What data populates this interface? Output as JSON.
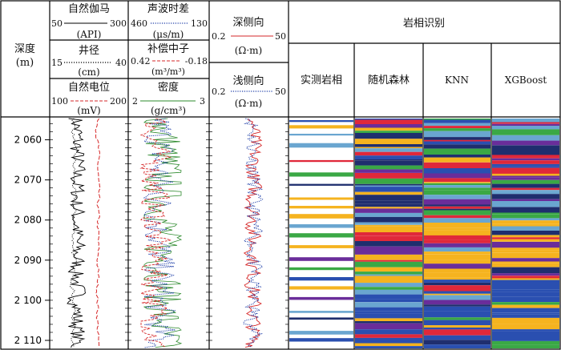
{
  "header": {
    "depth_title": "深度",
    "depth_unit": "(m)",
    "track1": [
      {
        "name": "自然伽马",
        "left": "50",
        "right": "300",
        "unit": "(API)",
        "color": "#000000",
        "style": "solid"
      },
      {
        "name": "井径",
        "left": "15",
        "right": "40",
        "unit": "(cm)",
        "color": "#000000",
        "style": "dotted"
      },
      {
        "name": "自然电位",
        "left": "100",
        "right": "200",
        "unit": "(mV)",
        "color": "#d62728",
        "style": "dashed"
      }
    ],
    "track2": [
      {
        "name": "声波时差",
        "left": "460",
        "right": "130",
        "unit": "(μs/m)",
        "color": "#1f3fa8",
        "style": "dotted"
      },
      {
        "name": "补偿中子",
        "left": "0.42",
        "right": "-0.18",
        "unit": "(m³/m³)",
        "color": "#d62728",
        "style": "dashed"
      },
      {
        "name": "密度",
        "left": "2",
        "right": "3",
        "unit": "(g/cm³)",
        "color": "#2e8b2e",
        "style": "solid"
      }
    ],
    "track3": [
      {
        "name": "深侧向",
        "left": "0.2",
        "right": "50",
        "unit": "(Ω·m)",
        "color": "#d62728",
        "style": "solid"
      },
      {
        "name": "浅侧向",
        "left": "0.2",
        "right": "50",
        "unit": "(Ω·m)",
        "color": "#1f3fa8",
        "style": "dotted"
      }
    ],
    "facies_title": "岩相识别",
    "facies_columns": [
      "实测岩相",
      "随机森林",
      "KNN",
      "XGBoost"
    ]
  },
  "depth_ticks": [
    "2 060",
    "2 070",
    "2 080",
    "2 090",
    "2 100",
    "2 110"
  ],
  "depth_values": [
    2060,
    2070,
    2080,
    2090,
    2100,
    2110
  ],
  "depth_range": [
    2054.5,
    2112
  ],
  "colors": {
    "light_blue": "#6aa6d0",
    "green": "#3aa845",
    "blue": "#2a4fb0",
    "purple": "#6a2d9a",
    "red": "#e0283a",
    "yellow": "#f5b31f",
    "navy": "#1f2e6e",
    "white": "#ffffff"
  }
}
